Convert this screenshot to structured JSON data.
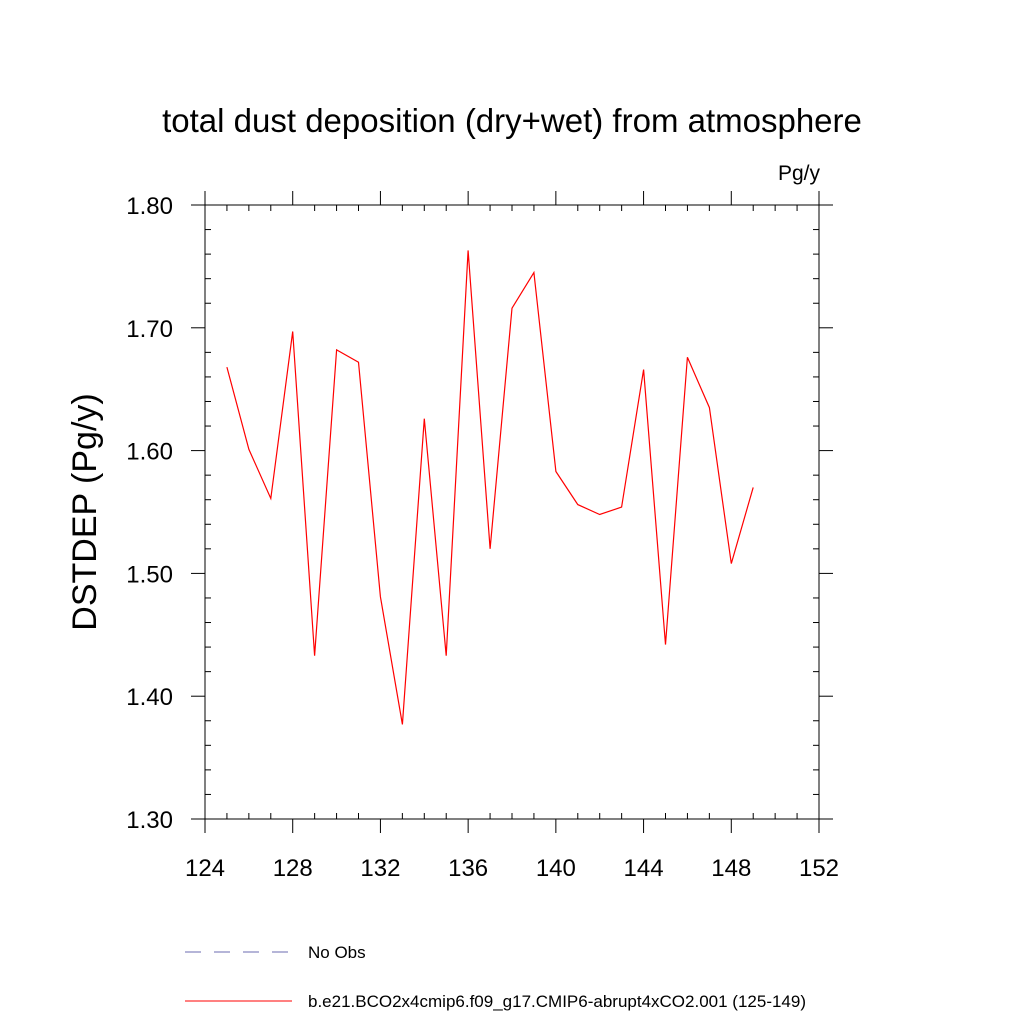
{
  "chart_data": {
    "type": "line",
    "title": "total dust deposition (dry+wet) from atmosphere",
    "units_label": "Pg/y",
    "xlabel": "",
    "ylabel": "DSTDEP  (Pg/y)",
    "xlim": [
      124,
      152
    ],
    "ylim": [
      1.3,
      1.8
    ],
    "x_ticks": [
      124,
      128,
      132,
      136,
      140,
      144,
      148,
      152
    ],
    "x_tick_labels": [
      "124",
      "128",
      "132",
      "136",
      "140",
      "144",
      "148",
      "152"
    ],
    "y_ticks": [
      1.3,
      1.4,
      1.5,
      1.6,
      1.7,
      1.8
    ],
    "y_tick_labels": [
      "1.30",
      "1.40",
      "1.50",
      "1.60",
      "1.70",
      "1.80"
    ],
    "series": [
      {
        "name": "b.e21.BCO2x4cmip6.f09_g17.CMIP6-abrupt4xCO2.001 (125-149)",
        "color": "#ff0000",
        "style": "solid",
        "x": [
          125,
          126,
          127,
          128,
          129,
          130,
          131,
          132,
          133,
          134,
          135,
          136,
          137,
          138,
          139,
          140,
          141,
          142,
          143,
          144,
          145,
          146,
          147,
          148,
          149
        ],
        "values": [
          1.668,
          1.601,
          1.561,
          1.697,
          1.433,
          1.682,
          1.672,
          1.481,
          1.377,
          1.626,
          1.433,
          1.763,
          1.52,
          1.716,
          1.745,
          1.583,
          1.556,
          1.548,
          1.554,
          1.666,
          1.442,
          1.676,
          1.635,
          1.508,
          1.57
        ]
      }
    ],
    "legend": [
      {
        "label": "No Obs",
        "color": "#6b6bb0",
        "style": "dashed"
      },
      {
        "label": "b.e21.BCO2x4cmip6.f09_g17.CMIP6-abrupt4xCO2.001 (125-149)",
        "color": "#ff0000",
        "style": "solid"
      }
    ],
    "grid": false,
    "legend_position": "bottom"
  }
}
